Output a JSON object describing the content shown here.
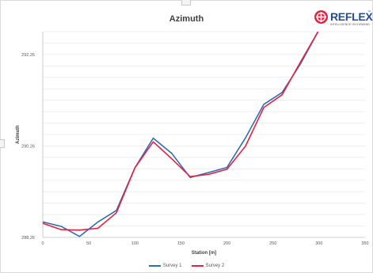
{
  "chart_data": {
    "type": "line",
    "title": "Azimuth",
    "xlabel": "Station [m]",
    "ylabel": "Azimuth",
    "xlim": [
      0,
      350
    ],
    "ylim": [
      288.26,
      292.76
    ],
    "x_ticks": [
      "0",
      "50",
      "100",
      "150",
      "200",
      "250",
      "300",
      "350"
    ],
    "y_tick_labels": [
      "288.26",
      "290.26",
      "292.26"
    ],
    "y_tick_values": [
      288.26,
      290.26,
      292.26
    ],
    "grid": true,
    "legend_position": "bottom",
    "series": [
      {
        "name": "Survey 1",
        "color": "#2e6eb5",
        "x": [
          0,
          20,
          40,
          60,
          80,
          100,
          120,
          140,
          160,
          180,
          200,
          220,
          240,
          260,
          280,
          300
        ],
        "y": [
          288.6,
          288.5,
          288.28,
          288.6,
          288.85,
          289.78,
          290.43,
          290.1,
          289.57,
          289.68,
          289.79,
          290.43,
          291.17,
          291.43,
          292.06,
          292.8
        ]
      },
      {
        "name": "Survey 2",
        "color": "#e8213f",
        "x": [
          0,
          20,
          40,
          60,
          80,
          100,
          120,
          140,
          160,
          180,
          200,
          220,
          240,
          260,
          280,
          300
        ],
        "y": [
          288.57,
          288.43,
          288.42,
          288.46,
          288.8,
          289.78,
          290.35,
          289.98,
          289.59,
          289.64,
          289.75,
          290.25,
          291.1,
          291.38,
          292.1,
          292.8
        ]
      }
    ]
  },
  "logo": {
    "text": "REFLEX",
    "tagline": "INTELLIGENCE ON DEMAND",
    "tm": "™",
    "red": "#e8213f",
    "blue": "#1f4e9b"
  }
}
